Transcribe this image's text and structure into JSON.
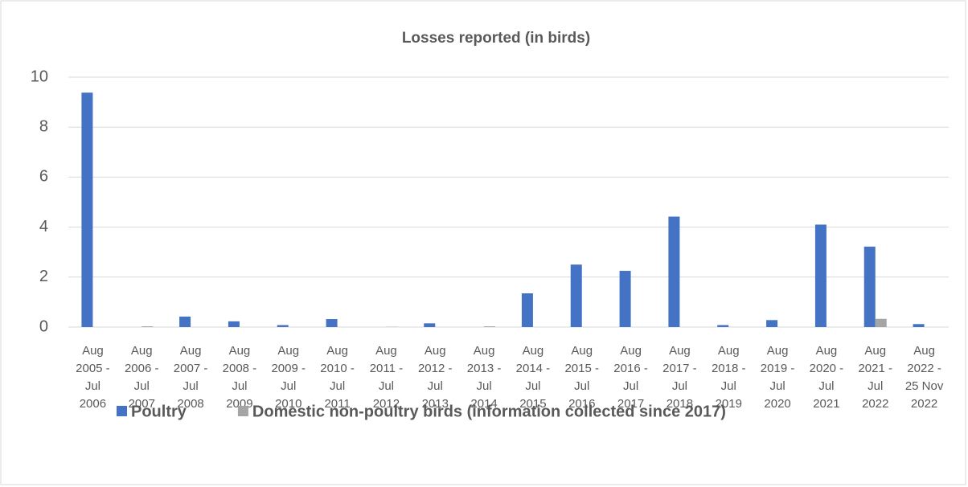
{
  "chart_data": {
    "type": "bar",
    "title": "Losses reported (in birds)",
    "categories": [
      [
        "Aug",
        "2005 -",
        "Jul",
        "2006"
      ],
      [
        "Aug",
        "2006 -",
        "Jul",
        "2007"
      ],
      [
        "Aug",
        "2007 -",
        "Jul",
        "2008"
      ],
      [
        "Aug",
        "2008 -",
        "Jul",
        "2009"
      ],
      [
        "Aug",
        "2009 -",
        "Jul",
        "2010"
      ],
      [
        "Aug",
        "2010 -",
        "Jul",
        "2011"
      ],
      [
        "Aug",
        "2011 -",
        "Jul",
        "2012"
      ],
      [
        "Aug",
        "2012 -",
        "Jul",
        "2013"
      ],
      [
        "Aug",
        "2013 -",
        "Jul",
        "2014"
      ],
      [
        "Aug",
        "2014 -",
        "Jul",
        "2015"
      ],
      [
        "Aug",
        "2015 -",
        "Jul",
        "2016"
      ],
      [
        "Aug",
        "2016 -",
        "Jul",
        "2017"
      ],
      [
        "Aug",
        "2017 -",
        "Jul",
        "2018"
      ],
      [
        "Aug",
        "2018 -",
        "Jul",
        "2019"
      ],
      [
        "Aug",
        "2019 -",
        "Jul",
        "2020"
      ],
      [
        "Aug",
        "2020 -",
        "Jul",
        "2021"
      ],
      [
        "Aug",
        "2021 -",
        "Jul",
        "2022"
      ],
      [
        "Aug",
        "2022 -",
        "25 Nov",
        "2022"
      ]
    ],
    "series": [
      {
        "name": "Poultry",
        "color": "#4472c4",
        "values": [
          9.38,
          0,
          0.42,
          0.23,
          0.08,
          0.32,
          0,
          0.15,
          0,
          1.35,
          2.5,
          2.25,
          4.42,
          0.08,
          0.28,
          4.1,
          3.22,
          0.12
        ]
      },
      {
        "name": "Domestic non-poultry birds (information collected since 2017)",
        "color": "#a5a5a5",
        "values": [
          0,
          0.03,
          0,
          0,
          0,
          0,
          0.01,
          0,
          0.03,
          0,
          0,
          0,
          0,
          0,
          0,
          0,
          0.33,
          0
        ]
      }
    ],
    "ylim": [
      0,
      10
    ],
    "yticks": [
      0,
      2,
      4,
      6,
      8,
      10
    ],
    "grid": true,
    "legend": "bottom"
  }
}
